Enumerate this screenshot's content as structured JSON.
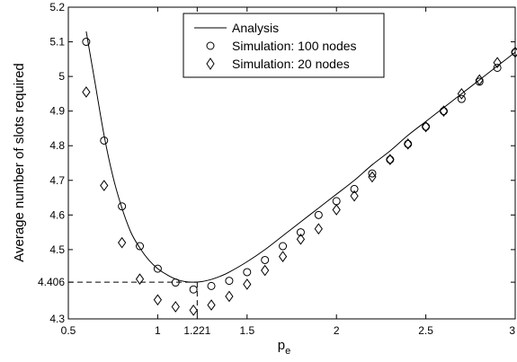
{
  "chart_data": {
    "type": "line",
    "xlabel": "p",
    "xlabel_subscript": "e",
    "ylabel": "Average number of slots required",
    "xlim": [
      0.5,
      3
    ],
    "ylim": [
      4.3,
      5.2
    ],
    "xticks": [
      "0.5",
      "1",
      "1.221",
      "1.5",
      "2",
      "2.5",
      "3"
    ],
    "xtick_values": [
      0.5,
      1,
      1.221,
      1.5,
      2,
      2.5,
      3
    ],
    "yticks": [
      "4.3",
      "4.406",
      "4.5",
      "4.6",
      "4.7",
      "4.8",
      "4.9",
      "5",
      "5.1",
      "5.2"
    ],
    "ytick_values": [
      4.3,
      4.406,
      4.5,
      4.6,
      4.7,
      4.8,
      4.9,
      5,
      5.1,
      5.2
    ],
    "optimum": {
      "x": 1.221,
      "y": 4.406
    },
    "legend_position": "top-center",
    "grid": false,
    "series": [
      {
        "name": "Analysis",
        "marker": "line",
        "x": [
          0.6,
          0.65,
          0.7,
          0.75,
          0.8,
          0.85,
          0.9,
          0.95,
          1.0,
          1.05,
          1.1,
          1.15,
          1.2,
          1.25,
          1.3,
          1.35,
          1.4,
          1.5,
          1.6,
          1.7,
          1.8,
          1.9,
          2.0,
          2.1,
          2.2,
          2.3,
          2.4,
          2.5,
          2.6,
          2.7,
          2.8,
          2.9,
          3.0
        ],
        "y": [
          5.13,
          4.98,
          4.83,
          4.71,
          4.62,
          4.55,
          4.505,
          4.47,
          4.445,
          4.428,
          4.415,
          4.408,
          4.406,
          4.408,
          4.414,
          4.423,
          4.435,
          4.465,
          4.5,
          4.54,
          4.58,
          4.62,
          4.66,
          4.7,
          4.745,
          4.785,
          4.83,
          4.87,
          4.91,
          4.95,
          4.99,
          5.03,
          5.07
        ]
      },
      {
        "name": "Simulation: 100 nodes",
        "marker": "circle",
        "x": [
          0.6,
          0.7,
          0.8,
          0.9,
          1.0,
          1.1,
          1.2,
          1.3,
          1.4,
          1.5,
          1.6,
          1.7,
          1.8,
          1.9,
          2.0,
          2.1,
          2.2,
          2.3,
          2.4,
          2.5,
          2.6,
          2.7,
          2.8,
          2.9,
          3.0
        ],
        "y": [
          5.1,
          4.815,
          4.625,
          4.51,
          4.445,
          4.405,
          4.385,
          4.395,
          4.41,
          4.435,
          4.47,
          4.51,
          4.55,
          4.6,
          4.64,
          4.675,
          4.72,
          4.76,
          4.805,
          4.855,
          4.9,
          4.935,
          4.985,
          5.025,
          5.07
        ]
      },
      {
        "name": "Simulation: 20 nodes",
        "marker": "diamond",
        "x": [
          0.6,
          0.7,
          0.8,
          0.9,
          1.0,
          1.1,
          1.2,
          1.3,
          1.4,
          1.5,
          1.6,
          1.7,
          1.8,
          1.9,
          2.0,
          2.1,
          2.2,
          2.3,
          2.4,
          2.5,
          2.6,
          2.7,
          2.8,
          2.9,
          3.0
        ],
        "y": [
          4.955,
          4.685,
          4.52,
          4.415,
          4.355,
          4.335,
          4.325,
          4.34,
          4.365,
          4.4,
          4.44,
          4.48,
          4.53,
          4.56,
          4.615,
          4.655,
          4.71,
          4.76,
          4.805,
          4.855,
          4.9,
          4.95,
          4.99,
          5.04,
          5.07
        ]
      }
    ]
  }
}
